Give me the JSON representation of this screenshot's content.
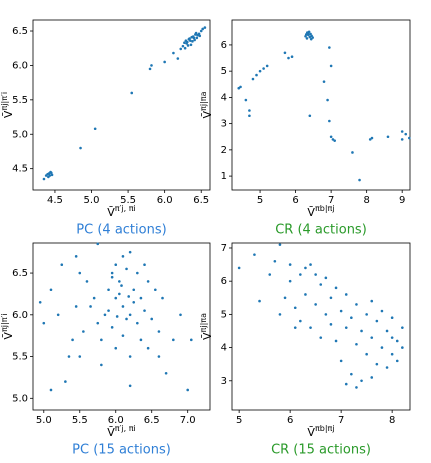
{
  "chart_data": [
    {
      "type": "scatter",
      "title": "PC (4 actions)",
      "title_color": "#2f7fd6",
      "color": "#1f77b4",
      "xlabel": {
        "base": "V̄",
        "sup": "π′j, πi"
      },
      "ylabel": {
        "base": "V̄",
        "sup": "πj|π′i"
      },
      "xlim": [
        4.2,
        6.62
      ],
      "ylim": [
        4.19,
        6.66
      ],
      "xticks": [
        4.5,
        {
          "value": 5,
          "label": "5.0"
        },
        5.5,
        {
          "value": 6,
          "label": "6.0"
        },
        6.5
      ],
      "yticks": [
        {
          "value": 5,
          "label": "5.0"
        },
        5.5,
        {
          "value": 6,
          "label": "6.0"
        },
        6.5,
        4.5
      ],
      "x": [
        6.3,
        6.35,
        6.4,
        6.45,
        6.28,
        6.33,
        6.38,
        6.42,
        6.25,
        6.5,
        6.36,
        6.31,
        6.44,
        6.39,
        6.27,
        6.47,
        6.34,
        6.41,
        6.22,
        6.52,
        6.37,
        6.32,
        6.29,
        6.43,
        6.48,
        4.4,
        4.43,
        4.45,
        4.41,
        4.44,
        4.38,
        4.46,
        4.42,
        4.35,
        4.85,
        5.05,
        5.55,
        5.8,
        5.82,
        6.0,
        6.12,
        6.18,
        6.55
      ],
      "y": [
        6.32,
        6.36,
        6.4,
        6.44,
        6.25,
        6.38,
        6.35,
        6.45,
        6.28,
        6.5,
        6.3,
        6.34,
        6.4,
        6.42,
        6.33,
        6.46,
        6.39,
        6.37,
        6.24,
        6.53,
        6.41,
        6.29,
        6.36,
        6.47,
        6.43,
        4.42,
        4.4,
        4.44,
        4.38,
        4.45,
        4.4,
        4.41,
        4.43,
        4.35,
        4.8,
        5.08,
        5.6,
        5.95,
        6.0,
        6.05,
        6.18,
        6.1,
        6.55
      ]
    },
    {
      "type": "scatter",
      "title": "CR (4 actions)",
      "title_color": "#2a9a2a",
      "color": "#1f77b4",
      "xlabel": {
        "base": "V̄",
        "sup": "πb|πj"
      },
      "ylabel": {
        "base": "V̄",
        "sup": "πj|πa"
      },
      "xlim": [
        4.21,
        9.22
      ],
      "ylim": [
        0.47,
        6.95
      ],
      "xticks": [
        5,
        6,
        7,
        8,
        9
      ],
      "yticks": [
        1,
        2,
        3,
        4,
        5,
        6
      ],
      "x": [
        6.3,
        6.35,
        6.4,
        6.45,
        6.32,
        6.38,
        6.42,
        6.28,
        6.48,
        6.36,
        6.33,
        6.44,
        4.4,
        4.45,
        4.6,
        4.7,
        4.7,
        4.8,
        4.9,
        5.0,
        5.1,
        5.2,
        5.7,
        5.8,
        6.8,
        6.9,
        6.95,
        7.0,
        7.05,
        7.1,
        7.0,
        6.95,
        7.6,
        7.8,
        8.1,
        8.15,
        8.6,
        9.0,
        9.1,
        9.2,
        9.0,
        6.4,
        5.9
      ],
      "y": [
        6.4,
        6.45,
        6.3,
        6.35,
        6.25,
        6.5,
        6.42,
        6.33,
        6.28,
        6.38,
        6.47,
        6.22,
        4.35,
        4.4,
        3.9,
        3.5,
        3.3,
        4.7,
        4.85,
        5.0,
        5.1,
        5.2,
        5.7,
        5.5,
        4.6,
        3.9,
        3.1,
        2.5,
        2.4,
        2.35,
        5.2,
        5.9,
        1.9,
        0.85,
        2.4,
        2.45,
        2.5,
        2.4,
        2.6,
        2.45,
        2.7,
        3.3,
        5.55
      ]
    },
    {
      "type": "scatter",
      "title": "PC (15 actions)",
      "title_color": "#2f7fd6",
      "color": "#1f77b4",
      "xlabel": {
        "base": "V̄",
        "sup": "π′j, πi"
      },
      "ylabel": {
        "base": "V̄",
        "sup": "πj|π′i"
      },
      "xlim": [
        4.85,
        7.31
      ],
      "ylim": [
        4.86,
        6.86
      ],
      "xticks": [
        {
          "value": 5,
          "label": "5.0"
        },
        5.5,
        {
          "value": 6,
          "label": "6.0"
        },
        6.5,
        {
          "value": 7,
          "label": "7.0"
        }
      ],
      "yticks": [
        {
          "value": 5,
          "label": "5.0"
        },
        5.5,
        {
          "value": 6,
          "label": "6.0"
        },
        6.5
      ],
      "x": [
        6.1,
        6.0,
        6.2,
        5.9,
        6.3,
        6.05,
        6.15,
        6.0,
        6.1,
        5.95,
        6.25,
        6.35,
        5.85,
        5.75,
        6.4,
        6.5,
        6.6,
        5.7,
        5.6,
        5.5,
        5.8,
        6.0,
        6.2,
        6.1,
        5.95,
        6.45,
        6.55,
        6.3,
        5.65,
        5.55,
        5.4,
        5.35,
        5.45,
        5.2,
        5.1,
        4.95,
        5.0,
        5.25,
        5.45,
        5.75,
        6.2,
        6.05,
        6.15,
        6.25,
        5.9,
        6.35,
        6.45,
        6.6,
        6.7,
        6.8,
        7.05,
        7.0,
        6.2,
        5.8,
        5.5,
        5.3,
        5.1,
        6.4,
        6.65,
        6.9,
        5.95,
        6.08,
        6.18,
        6.02
      ],
      "y": [
        6.1,
        6.2,
        6.0,
        6.3,
        5.9,
        6.4,
        6.55,
        6.6,
        6.7,
        6.5,
        6.3,
        6.2,
        6.0,
        5.9,
        6.05,
        5.95,
        5.8,
        6.2,
        6.4,
        6.5,
        5.7,
        5.6,
        5.5,
        5.75,
        5.85,
        6.4,
        6.3,
        6.5,
        6.1,
        5.8,
        5.7,
        5.5,
        6.1,
        6.0,
        6.3,
        6.15,
        5.9,
        6.6,
        6.7,
        6.85,
        6.75,
        6.25,
        5.95,
        6.15,
        6.05,
        5.7,
        5.6,
        5.5,
        5.3,
        5.7,
        5.7,
        5.1,
        5.15,
        5.4,
        5.5,
        5.2,
        5.1,
        6.6,
        6.2,
        6.0,
        6.45,
        6.35,
        6.22,
        5.98
      ]
    },
    {
      "type": "scatter",
      "title": "CR (15 actions)",
      "title_color": "#2a9a2a",
      "color": "#1f77b4",
      "xlabel": {
        "base": "V̄",
        "sup": "πb|πj"
      },
      "ylabel": {
        "base": "V̄",
        "sup": "πj|πa"
      },
      "xlim": [
        4.86,
        8.35
      ],
      "ylim": [
        2.12,
        7.15
      ],
      "xticks": [
        5,
        6,
        7,
        8
      ],
      "yticks": [
        3,
        4,
        5,
        6,
        7
      ],
      "x": [
        5.0,
        5.3,
        5.4,
        5.7,
        5.8,
        5.9,
        6.0,
        6.1,
        6.2,
        6.2,
        6.3,
        6.4,
        6.4,
        6.5,
        6.6,
        6.6,
        6.7,
        6.7,
        6.8,
        6.8,
        6.9,
        6.9,
        7.0,
        7.0,
        7.1,
        7.1,
        7.2,
        7.2,
        7.3,
        7.3,
        7.4,
        7.4,
        7.5,
        7.5,
        7.6,
        7.6,
        7.7,
        7.7,
        7.8,
        7.8,
        7.9,
        7.9,
        8.0,
        8.0,
        8.1,
        8.1,
        8.2,
        8.2,
        6.0,
        5.6,
        6.3,
        6.5,
        7.1,
        7.3,
        5.8,
        6.1,
        7.6,
        8.0
      ],
      "y": [
        6.4,
        6.8,
        5.4,
        6.6,
        5.0,
        5.5,
        6.0,
        5.2,
        6.2,
        4.8,
        5.6,
        6.5,
        4.6,
        5.3,
        5.9,
        4.3,
        5.0,
        6.1,
        4.7,
        5.5,
        4.2,
        5.8,
        5.1,
        3.6,
        4.6,
        5.6,
        3.2,
        4.9,
        4.1,
        5.3,
        3.0,
        4.5,
        5.0,
        3.8,
        4.3,
        5.4,
        3.5,
        4.8,
        4.0,
        5.1,
        3.4,
        4.5,
        3.8,
        4.9,
        4.2,
        3.6,
        4.0,
        4.6,
        6.5,
        6.2,
        6.4,
        6.2,
        2.9,
        2.8,
        7.1,
        4.6,
        3.1,
        4.3
      ]
    }
  ]
}
